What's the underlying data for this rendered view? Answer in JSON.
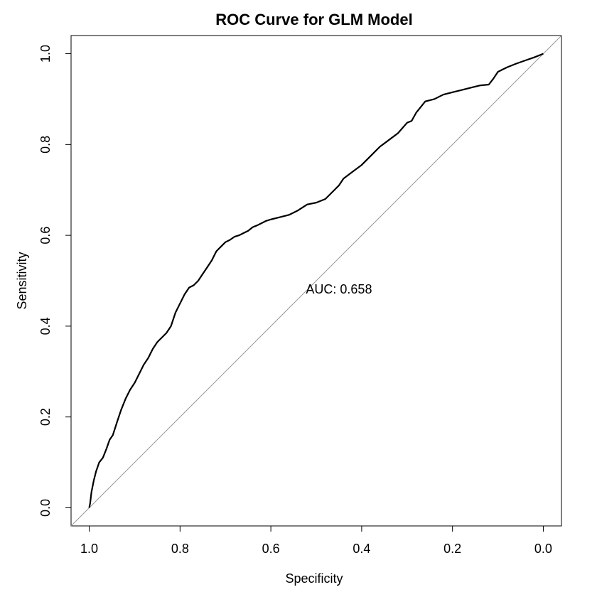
{
  "chart_data": {
    "type": "line",
    "title": "ROC Curve for GLM Model",
    "xlabel": "Specificity",
    "ylabel": "Sensitivity",
    "x_reversed": true,
    "xlim": [
      1.04,
      -0.04
    ],
    "ylim": [
      -0.04,
      1.04
    ],
    "xticks": [
      1.0,
      0.8,
      0.6,
      0.4,
      0.2,
      0.0
    ],
    "xtick_labels": [
      "1.0",
      "0.8",
      "0.6",
      "0.4",
      "0.2",
      "0.0"
    ],
    "yticks": [
      0.0,
      0.2,
      0.4,
      0.6,
      0.8,
      1.0
    ],
    "ytick_labels": [
      "0.0",
      "0.2",
      "0.4",
      "0.6",
      "0.8",
      "1.0"
    ],
    "grid": false,
    "annotation": "AUC: 0.658",
    "diagonal": {
      "from": [
        1.0,
        0.0
      ],
      "to": [
        0.0,
        1.0
      ],
      "color": "#999999"
    },
    "series": [
      {
        "color": "#000000",
        "x": [
          1.0,
          0.998,
          0.995,
          0.99,
          0.985,
          0.978,
          0.97,
          0.962,
          0.955,
          0.948,
          0.94,
          0.93,
          0.92,
          0.91,
          0.9,
          0.89,
          0.88,
          0.87,
          0.86,
          0.85,
          0.84,
          0.83,
          0.82,
          0.81,
          0.8,
          0.79,
          0.78,
          0.77,
          0.76,
          0.75,
          0.74,
          0.73,
          0.72,
          0.71,
          0.7,
          0.69,
          0.68,
          0.67,
          0.66,
          0.65,
          0.64,
          0.63,
          0.62,
          0.61,
          0.6,
          0.58,
          0.56,
          0.54,
          0.52,
          0.5,
          0.48,
          0.46,
          0.45,
          0.44,
          0.42,
          0.4,
          0.38,
          0.36,
          0.34,
          0.32,
          0.3,
          0.29,
          0.28,
          0.26,
          0.24,
          0.22,
          0.2,
          0.18,
          0.16,
          0.14,
          0.12,
          0.11,
          0.1,
          0.09,
          0.08,
          0.06,
          0.04,
          0.02,
          0.0
        ],
        "y": [
          0.0,
          0.01,
          0.035,
          0.06,
          0.08,
          0.1,
          0.11,
          0.13,
          0.15,
          0.16,
          0.185,
          0.215,
          0.24,
          0.26,
          0.275,
          0.295,
          0.315,
          0.33,
          0.35,
          0.365,
          0.375,
          0.385,
          0.4,
          0.43,
          0.45,
          0.47,
          0.485,
          0.49,
          0.5,
          0.515,
          0.53,
          0.545,
          0.565,
          0.575,
          0.585,
          0.59,
          0.597,
          0.6,
          0.605,
          0.61,
          0.618,
          0.622,
          0.627,
          0.632,
          0.635,
          0.64,
          0.645,
          0.655,
          0.668,
          0.672,
          0.68,
          0.7,
          0.71,
          0.725,
          0.74,
          0.755,
          0.775,
          0.795,
          0.81,
          0.825,
          0.848,
          0.852,
          0.87,
          0.895,
          0.9,
          0.91,
          0.915,
          0.92,
          0.925,
          0.93,
          0.932,
          0.945,
          0.96,
          0.965,
          0.97,
          0.978,
          0.985,
          0.992,
          1.0
        ]
      }
    ]
  }
}
